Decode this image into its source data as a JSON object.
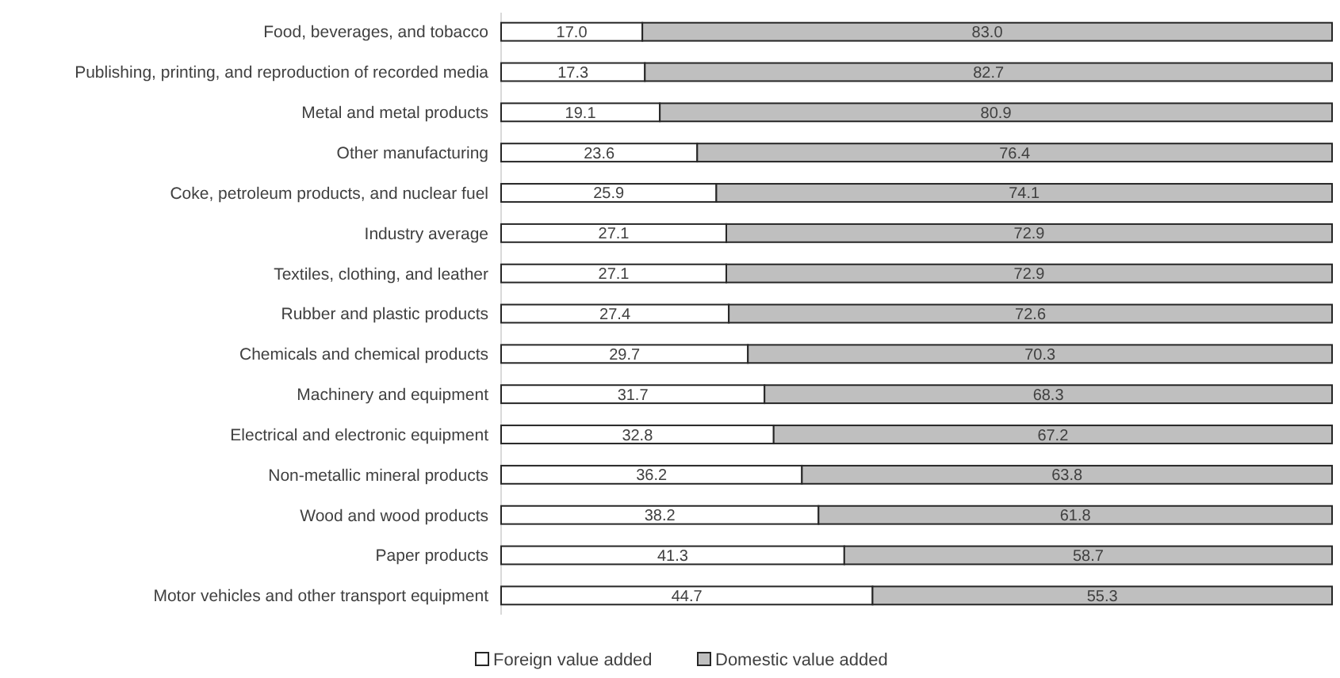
{
  "chart_data": {
    "type": "bar",
    "orientation": "horizontal",
    "stacked": true,
    "legend": "bottom",
    "categories": [
      "Food, beverages, and tobacco",
      "Publishing, printing, and reproduction of recorded media",
      "Metal and metal products",
      "Other manufacturing",
      "Coke, petroleum products, and nuclear fuel",
      "Industry average",
      "Textiles, clothing, and leather",
      "Rubber and plastic products",
      "Chemicals and chemical products",
      "Machinery and equipment",
      "Electrical and electronic equipment",
      "Non-metallic mineral products",
      "Wood and wood products",
      "Paper products",
      "Motor vehicles and other transport equipment"
    ],
    "series": [
      {
        "name": "Foreign value added",
        "color": "#ffffff",
        "values": [
          17.0,
          17.3,
          19.1,
          23.6,
          25.9,
          27.1,
          27.1,
          27.4,
          29.7,
          31.7,
          32.8,
          36.2,
          38.2,
          41.3,
          44.7
        ],
        "value_labels": [
          "17.0",
          "17.3",
          "19.1",
          "23.6",
          "25.9",
          "27.1",
          "27.1",
          "27.4",
          "29.7",
          "31.7",
          "32.8",
          "36.2",
          "38.2",
          "41.3",
          "44.7"
        ]
      },
      {
        "name": "Domestic value added",
        "color": "#bfbfbf",
        "values": [
          83.0,
          82.7,
          80.9,
          76.4,
          74.1,
          72.9,
          72.9,
          72.6,
          70.3,
          68.3,
          67.2,
          63.8,
          61.8,
          58.7,
          55.3
        ],
        "value_labels": [
          "83.0",
          "82.7",
          "80.9",
          "76.4",
          "74.1",
          "72.9",
          "72.9",
          "72.6",
          "70.3",
          "68.3",
          "67.2",
          "63.8",
          "61.8",
          "58.7",
          "55.3"
        ]
      }
    ]
  }
}
